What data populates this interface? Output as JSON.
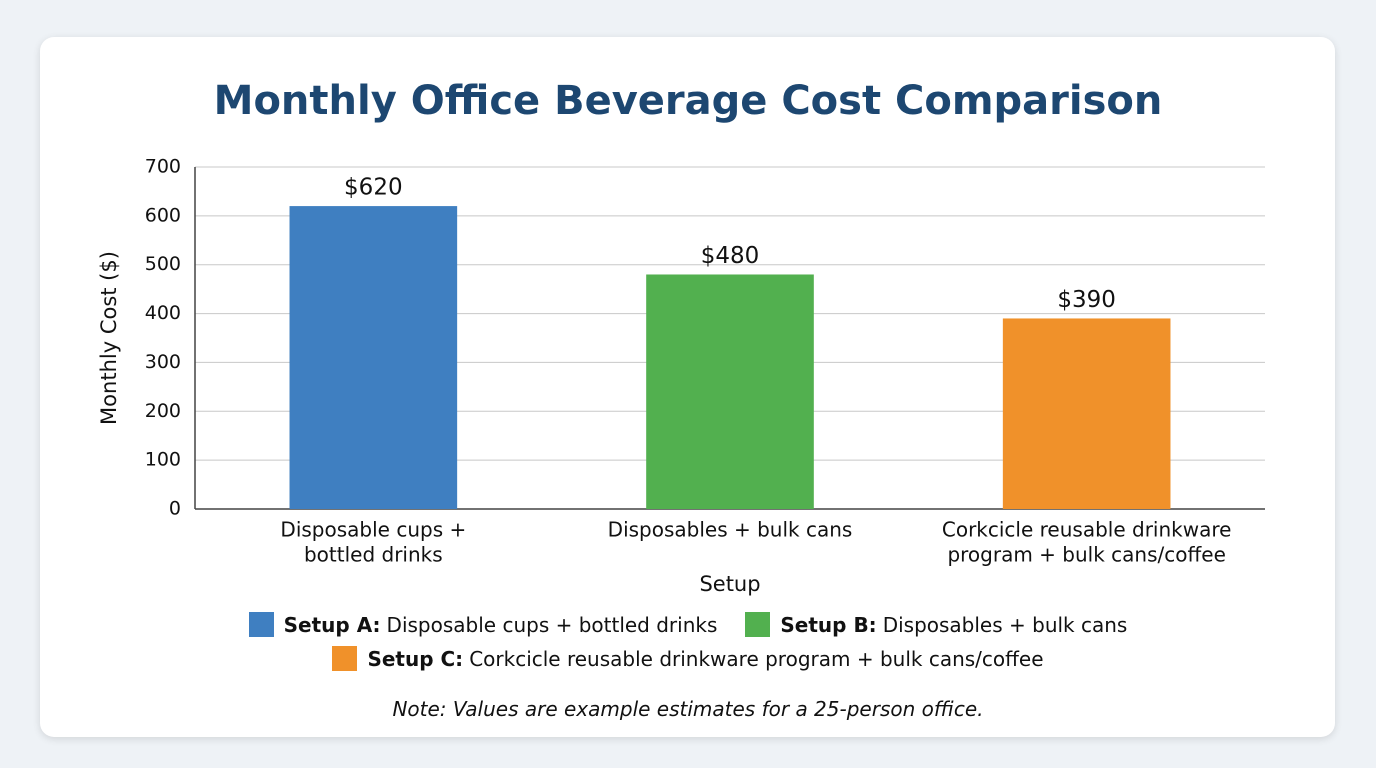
{
  "chart_data": {
    "type": "bar",
    "title": "Monthly Office Beverage Cost Comparison",
    "xlabel": "Setup",
    "ylabel": "Monthly Cost ($)",
    "categories": [
      [
        "Disposable cups +",
        "bottled drinks"
      ],
      [
        "Disposables + bulk cans"
      ],
      [
        "Corkcicle reusable drinkware",
        "program + bulk cans/coffee"
      ]
    ],
    "values": [
      620,
      480,
      390
    ],
    "value_labels": [
      "$620",
      "$480",
      "$390"
    ],
    "colors": [
      "#3f7fc1",
      "#52b04f",
      "#f0912a"
    ],
    "ylim": [
      0,
      700
    ],
    "yticks": [
      0,
      100,
      200,
      300,
      400,
      500,
      600,
      700
    ],
    "grid": true,
    "legend": [
      {
        "label": "Setup A:",
        "text": "Disposable cups + bottled drinks",
        "color": "#3f7fc1"
      },
      {
        "label": "Setup B:",
        "text": "Disposables + bulk cans",
        "color": "#52b04f"
      },
      {
        "label": "Setup C:",
        "text": "Corkcicle reusable drinkware program + bulk cans/coffee",
        "color": "#f0912a"
      }
    ],
    "note": "Note: Values are example estimates for a 25-person office."
  }
}
